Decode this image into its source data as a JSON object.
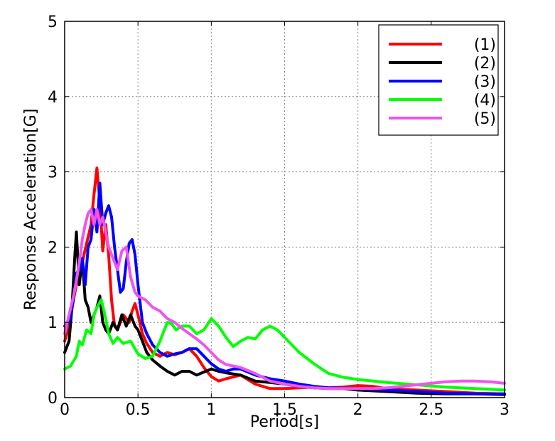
{
  "chart_data": {
    "type": "line",
    "title": "",
    "xlabel": "Period[s]",
    "ylabel": "Response Acceleration[G]",
    "xlim": [
      0,
      3
    ],
    "ylim": [
      0,
      5
    ],
    "xticks": [
      0,
      0.5,
      1,
      1.5,
      2,
      2.5,
      3
    ],
    "xtick_labels": [
      "0",
      "0.5",
      "1",
      "1.5",
      "2",
      "2.5",
      "3"
    ],
    "yticks": [
      0,
      1,
      2,
      3,
      4,
      5
    ],
    "ytick_labels": [
      "0",
      "1",
      "2",
      "3",
      "4",
      "5"
    ],
    "grid": true,
    "legend_position": "top-right",
    "series": [
      {
        "name": "(1)",
        "color": "#ff0000",
        "x": [
          0,
          0.03,
          0.06,
          0.09,
          0.12,
          0.15,
          0.18,
          0.2,
          0.22,
          0.24,
          0.26,
          0.28,
          0.3,
          0.32,
          0.34,
          0.36,
          0.38,
          0.4,
          0.42,
          0.44,
          0.46,
          0.48,
          0.5,
          0.53,
          0.56,
          0.6,
          0.65,
          0.7,
          0.75,
          0.8,
          0.85,
          0.9,
          0.95,
          1.0,
          1.05,
          1.1,
          1.2,
          1.3,
          1.4,
          1.5,
          1.6,
          1.7,
          1.8,
          1.9,
          2.0,
          2.1,
          2.2,
          2.4,
          2.6,
          2.8,
          3.0
        ],
        "y": [
          0.75,
          0.95,
          1.3,
          1.6,
          1.8,
          2.05,
          2.3,
          2.7,
          3.05,
          2.6,
          1.95,
          2.3,
          1.9,
          1.3,
          0.95,
          0.9,
          1.0,
          1.1,
          1.05,
          1.0,
          1.15,
          1.25,
          1.1,
          0.85,
          0.72,
          0.6,
          0.55,
          0.6,
          0.57,
          0.6,
          0.65,
          0.55,
          0.4,
          0.28,
          0.22,
          0.25,
          0.3,
          0.18,
          0.12,
          0.12,
          0.13,
          0.14,
          0.13,
          0.14,
          0.16,
          0.15,
          0.12,
          0.1,
          0.08,
          0.06,
          0.05
        ]
      },
      {
        "name": "(2)",
        "color": "#000000",
        "x": [
          0,
          0.03,
          0.05,
          0.07,
          0.08,
          0.1,
          0.12,
          0.14,
          0.16,
          0.18,
          0.2,
          0.22,
          0.24,
          0.26,
          0.28,
          0.3,
          0.33,
          0.36,
          0.39,
          0.42,
          0.45,
          0.48,
          0.5,
          0.53,
          0.56,
          0.6,
          0.65,
          0.7,
          0.75,
          0.8,
          0.85,
          0.9,
          0.95,
          1.0,
          1.05,
          1.1,
          1.2,
          1.3,
          1.4,
          1.5,
          1.6,
          1.7,
          1.8,
          1.9,
          2.0,
          2.2,
          2.4,
          2.6,
          2.8,
          3.0
        ],
        "y": [
          0.6,
          0.75,
          1.2,
          1.9,
          2.2,
          1.5,
          1.85,
          1.3,
          1.2,
          1.0,
          1.1,
          1.2,
          1.35,
          1.0,
          0.9,
          0.85,
          1.0,
          0.9,
          1.1,
          0.95,
          1.1,
          0.95,
          0.9,
          0.75,
          0.6,
          0.5,
          0.42,
          0.35,
          0.3,
          0.35,
          0.35,
          0.3,
          0.34,
          0.38,
          0.35,
          0.33,
          0.3,
          0.22,
          0.2,
          0.18,
          0.15,
          0.13,
          0.12,
          0.12,
          0.1,
          0.08,
          0.06,
          0.05,
          0.05,
          0.04
        ]
      },
      {
        "name": "(3)",
        "color": "#0000ff",
        "x": [
          0,
          0.03,
          0.06,
          0.08,
          0.1,
          0.12,
          0.14,
          0.16,
          0.18,
          0.2,
          0.22,
          0.24,
          0.26,
          0.28,
          0.3,
          0.32,
          0.34,
          0.36,
          0.38,
          0.4,
          0.42,
          0.44,
          0.46,
          0.48,
          0.5,
          0.53,
          0.56,
          0.6,
          0.65,
          0.7,
          0.75,
          0.8,
          0.85,
          0.9,
          0.95,
          1.0,
          1.05,
          1.1,
          1.15,
          1.2,
          1.3,
          1.4,
          1.5,
          1.6,
          1.7,
          1.8,
          2.0,
          2.2,
          2.4,
          2.6,
          2.8,
          3.0
        ],
        "y": [
          0.95,
          1.0,
          1.3,
          1.65,
          1.7,
          1.85,
          1.5,
          2.0,
          2.1,
          2.5,
          2.2,
          2.85,
          2.3,
          2.45,
          2.55,
          2.4,
          2.0,
          1.7,
          1.4,
          1.45,
          1.8,
          2.05,
          2.1,
          1.9,
          1.5,
          1.0,
          0.85,
          0.7,
          0.6,
          0.55,
          0.58,
          0.6,
          0.65,
          0.65,
          0.55,
          0.45,
          0.38,
          0.35,
          0.38,
          0.38,
          0.3,
          0.25,
          0.22,
          0.18,
          0.15,
          0.13,
          0.12,
          0.1,
          0.08,
          0.06,
          0.05,
          0.05
        ]
      },
      {
        "name": "(4)",
        "color": "#00ff00",
        "x": [
          0,
          0.04,
          0.08,
          0.1,
          0.12,
          0.15,
          0.18,
          0.2,
          0.22,
          0.25,
          0.28,
          0.3,
          0.33,
          0.36,
          0.4,
          0.45,
          0.5,
          0.55,
          0.6,
          0.65,
          0.7,
          0.73,
          0.76,
          0.8,
          0.85,
          0.9,
          0.95,
          1.0,
          1.05,
          1.1,
          1.15,
          1.2,
          1.25,
          1.3,
          1.35,
          1.4,
          1.45,
          1.5,
          1.55,
          1.6,
          1.7,
          1.8,
          1.9,
          2.0,
          2.2,
          2.4,
          2.6,
          2.8,
          3.0
        ],
        "y": [
          0.38,
          0.42,
          0.55,
          0.75,
          0.7,
          0.9,
          0.85,
          1.1,
          1.2,
          1.3,
          1.05,
          0.85,
          0.72,
          0.8,
          0.72,
          0.75,
          0.58,
          0.52,
          0.55,
          0.75,
          1.0,
          0.98,
          0.9,
          0.95,
          0.95,
          0.85,
          0.9,
          1.05,
          0.95,
          0.8,
          0.68,
          0.75,
          0.8,
          0.78,
          0.9,
          0.95,
          0.9,
          0.8,
          0.7,
          0.6,
          0.45,
          0.32,
          0.27,
          0.24,
          0.2,
          0.17,
          0.14,
          0.12,
          0.1
        ]
      },
      {
        "name": "(5)",
        "color": "#ee55ee",
        "x": [
          0,
          0.03,
          0.06,
          0.08,
          0.1,
          0.12,
          0.14,
          0.16,
          0.18,
          0.2,
          0.22,
          0.24,
          0.26,
          0.28,
          0.3,
          0.33,
          0.36,
          0.39,
          0.42,
          0.45,
          0.48,
          0.5,
          0.55,
          0.6,
          0.65,
          0.7,
          0.75,
          0.8,
          0.85,
          0.9,
          0.95,
          1.0,
          1.05,
          1.1,
          1.2,
          1.3,
          1.4,
          1.5,
          1.6,
          1.7,
          1.8,
          1.9,
          2.0,
          2.1,
          2.2,
          2.3,
          2.4,
          2.5,
          2.6,
          2.7,
          2.8,
          2.9,
          3.0
        ],
        "y": [
          0.85,
          1.1,
          1.35,
          1.55,
          1.8,
          2.1,
          2.3,
          2.45,
          2.5,
          2.3,
          2.5,
          2.3,
          2.4,
          2.2,
          2.0,
          1.85,
          1.7,
          1.95,
          2.0,
          1.6,
          1.4,
          1.35,
          1.3,
          1.2,
          1.15,
          1.05,
          1.0,
          0.92,
          0.85,
          0.78,
          0.7,
          0.6,
          0.5,
          0.44,
          0.4,
          0.32,
          0.22,
          0.18,
          0.15,
          0.13,
          0.12,
          0.12,
          0.12,
          0.12,
          0.13,
          0.15,
          0.17,
          0.19,
          0.21,
          0.22,
          0.22,
          0.21,
          0.19
        ]
      }
    ]
  }
}
